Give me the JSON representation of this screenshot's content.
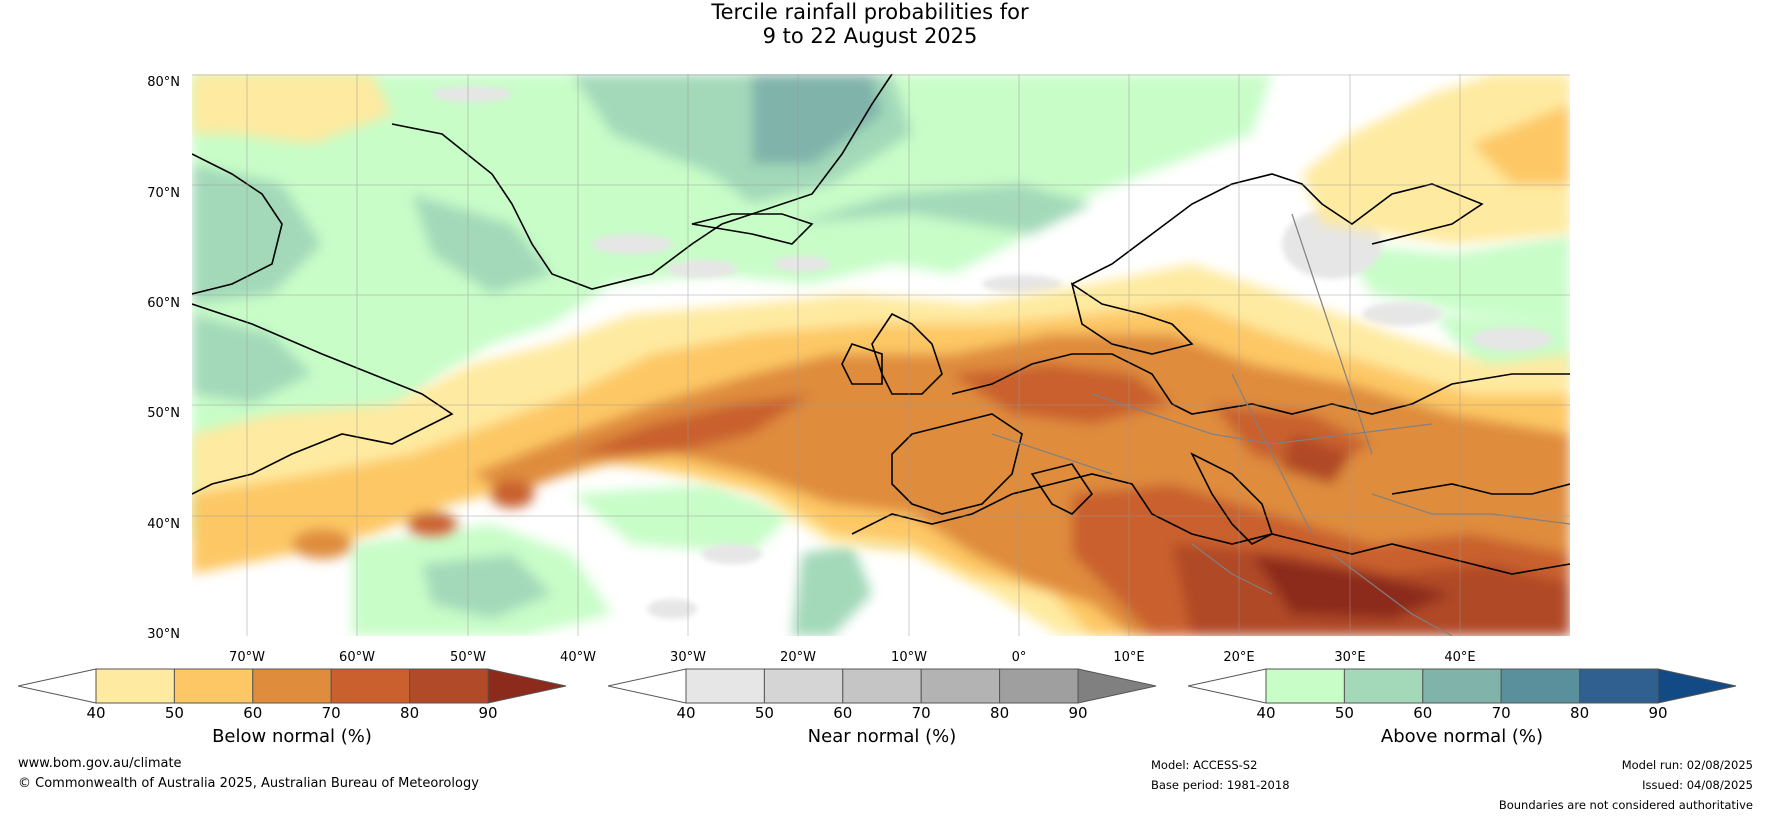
{
  "title_line1": "Tercile rainfall probabilities for",
  "title_line2": "9 to 22 August 2025",
  "map": {
    "lat_labels": [
      "80°N",
      "70°N",
      "60°N",
      "50°N",
      "40°N",
      "30°N"
    ],
    "lon_labels": [
      "70°W",
      "60°W",
      "50°W",
      "40°W",
      "30°W",
      "20°W",
      "10°W",
      "0°",
      "10°E",
      "20°E",
      "30°E",
      "40°E"
    ],
    "lat_range": [
      30,
      81
    ],
    "lon_range": [
      -76,
      49
    ]
  },
  "colorbars": [
    {
      "title": "Below normal (%)",
      "ticks": [
        "40",
        "50",
        "60",
        "70",
        "80",
        "90"
      ],
      "colors": [
        "#ffffff",
        "#feeaa0",
        "#fdc765",
        "#df8c3d",
        "#c9602e",
        "#b04a28",
        "#8c2b1c"
      ]
    },
    {
      "title": "Near normal (%)",
      "ticks": [
        "40",
        "50",
        "60",
        "70",
        "80",
        "90"
      ],
      "colors": [
        "#ffffff",
        "#e6e6e6",
        "#d5d5d5",
        "#c5c5c5",
        "#b3b3b3",
        "#9f9f9f",
        "#808080"
      ]
    },
    {
      "title": "Above normal (%)",
      "ticks": [
        "40",
        "50",
        "60",
        "70",
        "80",
        "90"
      ],
      "colors": [
        "#ffffff",
        "#c8fdc8",
        "#a3d9b9",
        "#80b3aa",
        "#5a8f9c",
        "#30608f",
        "#124a85"
      ]
    }
  ],
  "footer": {
    "website": "www.bom.gov.au/climate",
    "copyright": "© Commonwealth of Australia 2025, Australian Bureau of Meteorology",
    "model": "Model: ACCESS-S2",
    "base_period": "Base period: 1981-2018",
    "model_run": "Model run: 02/08/2025",
    "issued": "Issued: 04/08/2025",
    "disclaimer": "Boundaries are not considered authoritative"
  }
}
